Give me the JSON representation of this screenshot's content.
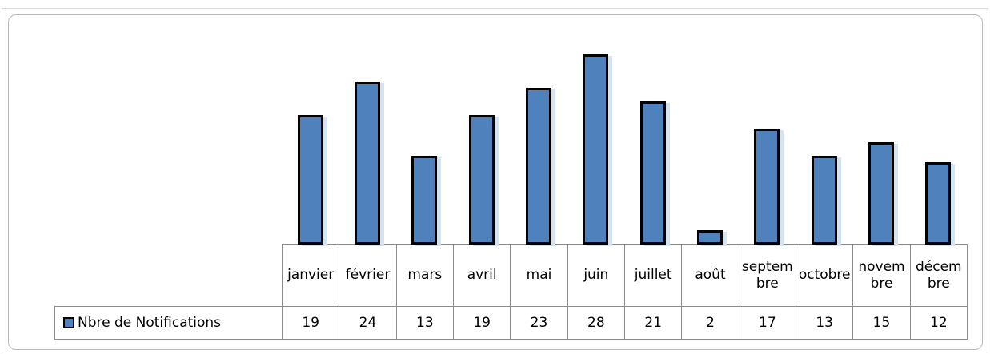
{
  "chart_data": {
    "type": "bar",
    "categories": [
      "janvier",
      "février",
      "mars",
      "avril",
      "mai",
      "juin",
      "juillet",
      "août",
      "septembre",
      "octobre",
      "novembre",
      "décembre"
    ],
    "series": [
      {
        "name": "Nbre de Notifications",
        "color": "#4f81bd",
        "values": [
          19,
          24,
          13,
          19,
          23,
          28,
          21,
          2,
          17,
          13,
          15,
          12
        ]
      }
    ]
  }
}
